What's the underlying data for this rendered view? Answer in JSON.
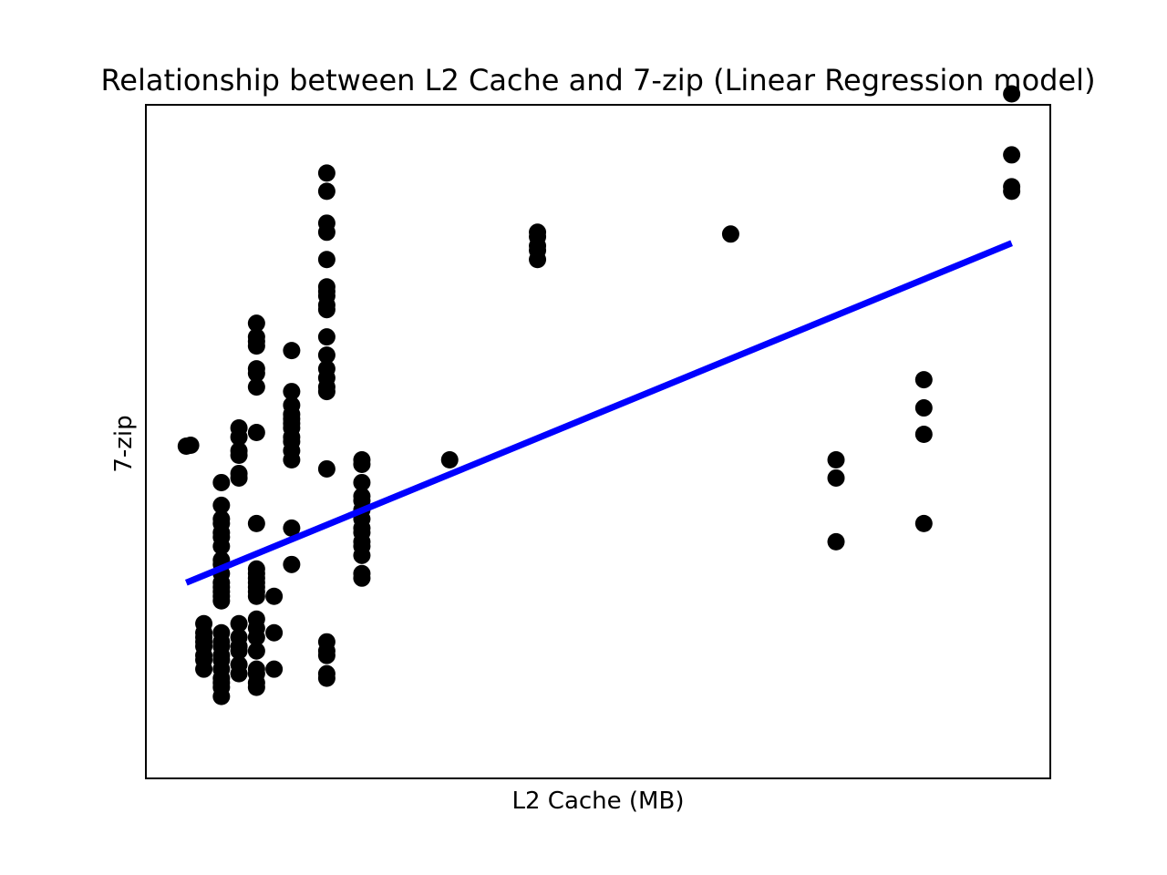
{
  "chart_data": {
    "type": "scatter",
    "title": "Relationship between L2 Cache and 7-zip (Linear Regression model)",
    "xlabel": "L2 Cache (MB)",
    "ylabel": "7-zip",
    "xlim": [
      -2.3,
      49.2
    ],
    "ylim": [
      -3,
      71
    ],
    "ticks_shown": false,
    "grid": false,
    "colors": {
      "points": "#000000",
      "fit": "#0000ff",
      "frame": "#000000"
    },
    "series": [
      {
        "type": "scatter",
        "x": [
          0,
          0.25,
          1,
          1,
          1,
          1,
          1,
          1,
          1,
          1,
          2,
          2,
          2,
          2,
          2,
          2,
          2,
          2,
          2,
          2,
          2,
          2,
          2,
          2,
          2,
          2,
          2,
          2,
          2,
          2,
          2,
          2,
          2,
          2,
          2,
          3,
          3,
          3,
          3,
          3,
          3,
          3,
          3,
          3,
          3,
          3,
          3,
          4,
          4,
          4,
          4,
          4,
          4,
          4,
          4,
          4,
          4,
          4,
          4,
          4,
          4,
          4,
          4,
          4,
          4,
          4,
          4,
          4,
          4,
          4,
          4,
          5,
          5,
          5,
          6,
          6,
          6,
          6,
          6,
          6,
          6,
          6,
          6,
          6,
          6,
          6,
          6,
          8,
          8,
          8,
          8,
          8,
          8,
          8,
          8,
          8,
          8,
          8,
          8,
          8,
          8,
          8,
          8,
          8,
          8,
          8,
          8,
          8,
          8,
          10,
          10,
          10,
          10,
          10,
          10,
          10,
          10,
          10,
          10,
          10,
          10,
          10,
          10,
          15,
          20,
          20,
          20,
          20,
          20,
          31,
          37,
          37,
          37,
          42,
          42,
          42,
          42,
          47,
          47,
          47,
          47
        ],
        "y": [
          33.5,
          33.6,
          9,
          10,
          10.5,
          11.5,
          12,
          12.5,
          13,
          14,
          6,
          7,
          7.5,
          8,
          9,
          10,
          10.5,
          11.5,
          12,
          13,
          16.5,
          17,
          17.5,
          18,
          18.5,
          19.5,
          20.5,
          21,
          22.5,
          23.5,
          24,
          25,
          25.5,
          27,
          29.5,
          8.5,
          9.5,
          11,
          11.5,
          12.5,
          14,
          30,
          30.5,
          32.5,
          33,
          34.5,
          35.5,
          7,
          7.5,
          8.5,
          9,
          11,
          12.5,
          13.5,
          14.5,
          17,
          17.5,
          18,
          18.5,
          19,
          19.5,
          20,
          25,
          35,
          40,
          41.5,
          42,
          44.5,
          45,
          45.5,
          47,
          9,
          13,
          17,
          20.5,
          24.5,
          32,
          33,
          34,
          34.5,
          35.5,
          36,
          36.5,
          37,
          38,
          39.5,
          44,
          8,
          8.5,
          10.5,
          11,
          12,
          31,
          39.5,
          40,
          41,
          42,
          43.5,
          45.5,
          48.5,
          49,
          50,
          50.5,
          51,
          54,
          57,
          58,
          61.5,
          63.5,
          19,
          19.5,
          21.5,
          22.5,
          23,
          24,
          24.5,
          25.5,
          26.5,
          27.5,
          28,
          29.5,
          31.5,
          32,
          32,
          54,
          55,
          55.5,
          56.5,
          57,
          56.8,
          23,
          30,
          32,
          25,
          34.8,
          37.7,
          40.8,
          61.5,
          62,
          65.5,
          72.2
        ]
      },
      {
        "type": "line",
        "name": "",
        "x": [
          0,
          47
        ],
        "y": [
          18.5,
          55.8
        ]
      }
    ]
  }
}
